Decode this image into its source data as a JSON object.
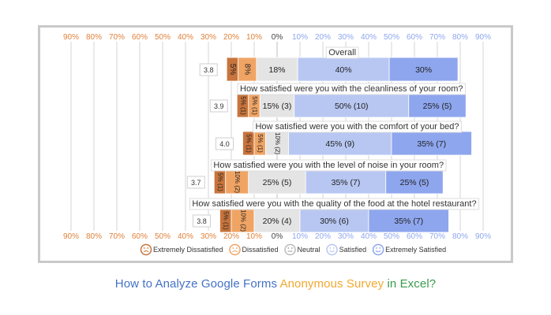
{
  "page": {
    "title_part1": "How to Analyze Google Forms ",
    "title_part2": "Anonymous Survey",
    "title_part3": " in Excel?",
    "title_colors": {
      "part1": "#4472c4",
      "part2": "#f0a830",
      "part3": "#3a9a4a"
    }
  },
  "chart_data": {
    "type": "bar",
    "stacked": "diverging",
    "axis": {
      "min": -90,
      "max": 90,
      "step": 10,
      "tick_labels": [
        "90%",
        "80%",
        "70%",
        "60%",
        "50%",
        "40%",
        "30%",
        "20%",
        "10%",
        "0%",
        "10%",
        "20%",
        "30%",
        "40%",
        "50%",
        "60%",
        "70%",
        "80%",
        "90%"
      ],
      "grid": true
    },
    "legend": {
      "placement": "bottom",
      "items": [
        {
          "label": "Extremely Dissatisfied",
          "icon": "very-sad-face-icon",
          "color": "#c8743c"
        },
        {
          "label": "Dissatisfied",
          "icon": "sad-face-icon",
          "color": "#f0a464"
        },
        {
          "label": "Neutral",
          "icon": "neutral-face-icon",
          "color": "#e4e4e4"
        },
        {
          "label": "Satisfied",
          "icon": "smile-face-icon",
          "color": "#b8c7f2"
        },
        {
          "label": "Extremely Satisfied",
          "icon": "happy-face-icon",
          "color": "#8ea6ee"
        }
      ]
    },
    "series_colors": {
      "extremely_dissatisfied": "#c8743c",
      "dissatisfied": "#f0a464",
      "neutral": "#e4e4e4",
      "satisfied": "#b8c7f2",
      "extremely_satisfied": "#8ea6ee"
    },
    "rows": [
      {
        "question": "Overall",
        "score": "3.8",
        "segments": [
          {
            "series": "extremely_dissatisfied",
            "value": 5,
            "label": "5%",
            "vertical": true
          },
          {
            "series": "dissatisfied",
            "value": 8,
            "label": "8%",
            "vertical": true
          },
          {
            "series": "neutral",
            "value": 18,
            "label": "18%"
          },
          {
            "series": "satisfied",
            "value": 40,
            "label": "40%"
          },
          {
            "series": "extremely_satisfied",
            "value": 30,
            "label": "30%"
          }
        ]
      },
      {
        "question": "How satisfied were you with the cleanliness of your room?",
        "score": "3.9",
        "segments": [
          {
            "series": "extremely_dissatisfied",
            "value": 5,
            "label": "5% (1)",
            "vertical": true
          },
          {
            "series": "dissatisfied",
            "value": 5,
            "label": "5% (1)",
            "vertical": true
          },
          {
            "series": "neutral",
            "value": 15,
            "label": "15% (3)"
          },
          {
            "series": "satisfied",
            "value": 50,
            "label": "50% (10)"
          },
          {
            "series": "extremely_satisfied",
            "value": 25,
            "label": "25% (5)"
          }
        ]
      },
      {
        "question": "How satisfied were you with the comfort of your bed?",
        "score": "4.0",
        "segments": [
          {
            "series": "extremely_dissatisfied",
            "value": 5,
            "label": "5% (1)",
            "vertical": true
          },
          {
            "series": "dissatisfied",
            "value": 5,
            "label": "5% (1)",
            "vertical": true
          },
          {
            "series": "neutral",
            "value": 10,
            "label": "10% (2)",
            "vertical": true
          },
          {
            "series": "satisfied",
            "value": 45,
            "label": "45% (9)"
          },
          {
            "series": "extremely_satisfied",
            "value": 35,
            "label": "35% (7)"
          }
        ]
      },
      {
        "question": "How satisfied were you with the level of noise in your room?",
        "score": "3.7",
        "segments": [
          {
            "series": "extremely_dissatisfied",
            "value": 5,
            "label": "5% (1)",
            "vertical": true
          },
          {
            "series": "dissatisfied",
            "value": 10,
            "label": "10% (2)",
            "vertical": true
          },
          {
            "series": "neutral",
            "value": 25,
            "label": "25% (5)"
          },
          {
            "series": "satisfied",
            "value": 35,
            "label": "35% (7)"
          },
          {
            "series": "extremely_satisfied",
            "value": 25,
            "label": "25% (5)"
          }
        ]
      },
      {
        "question": "How satisfied were you with the quality of the food at the hotel restaurant?",
        "score": "3.8",
        "segments": [
          {
            "series": "extremely_dissatisfied",
            "value": 5,
            "label": "5% (1)",
            "vertical": true
          },
          {
            "series": "dissatisfied",
            "value": 10,
            "label": "10% (2)",
            "vertical": true
          },
          {
            "series": "neutral",
            "value": 20,
            "label": "20% (4)"
          },
          {
            "series": "satisfied",
            "value": 30,
            "label": "30% (6)"
          },
          {
            "series": "extremely_satisfied",
            "value": 35,
            "label": "35% (7)"
          }
        ]
      }
    ]
  }
}
